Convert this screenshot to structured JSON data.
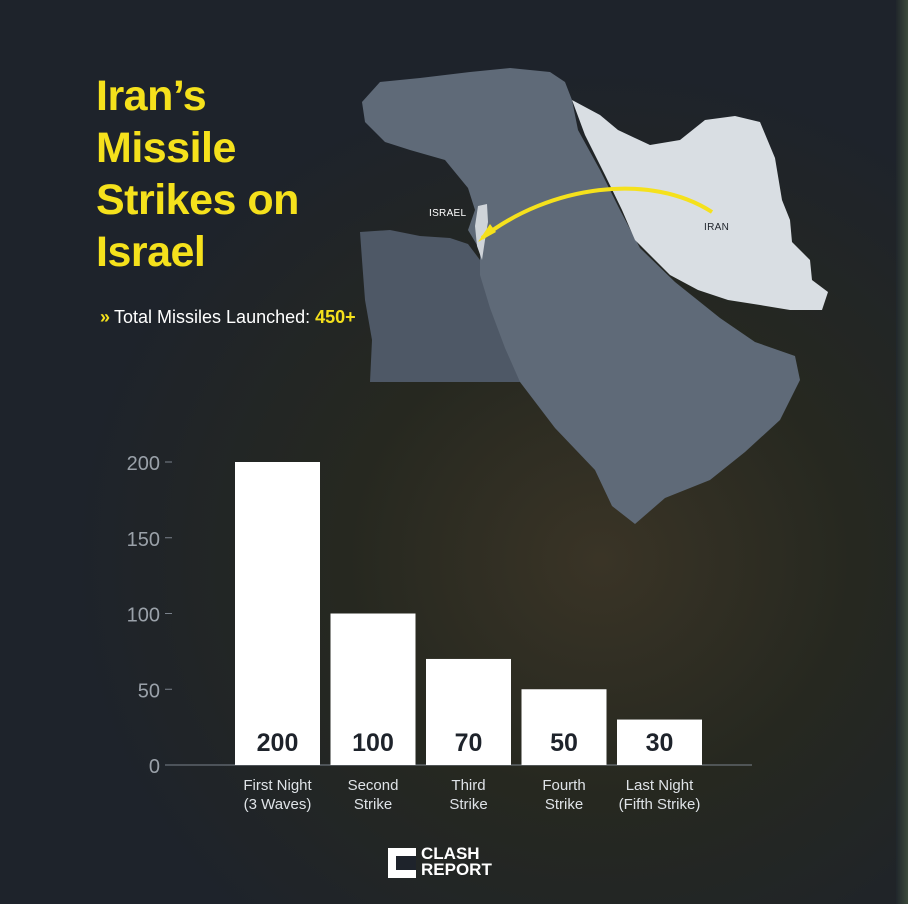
{
  "header": {
    "title": "Iran’s Missile Strikes on Israel",
    "total_label": "Total Missiles Launched:",
    "total_value": "450+"
  },
  "map": {
    "label_israel": "ISRAEL",
    "label_iran": "IRAN",
    "arrow_color": "#f5e11c",
    "iran_color": "#d9dee3",
    "region_color": "#5f6a78"
  },
  "chart_data": {
    "type": "bar",
    "categories": [
      [
        "First Night",
        "(3 Waves)"
      ],
      [
        "Second",
        "Strike"
      ],
      [
        "Third",
        "Strike"
      ],
      [
        "Fourth",
        "Strike"
      ],
      [
        "Last Night",
        "(Fifth Strike)"
      ]
    ],
    "values": [
      200,
      100,
      70,
      50,
      30
    ],
    "data_labels": [
      "200",
      "100",
      "70",
      "50",
      "30"
    ],
    "yticks": [
      0,
      50,
      100,
      150,
      200
    ],
    "ylim": [
      0,
      200
    ],
    "grid": false,
    "bar_color": "#ffffff",
    "label_color": "#1e232b"
  },
  "brand": {
    "line1": "CLASH",
    "line2": "REPORT"
  }
}
